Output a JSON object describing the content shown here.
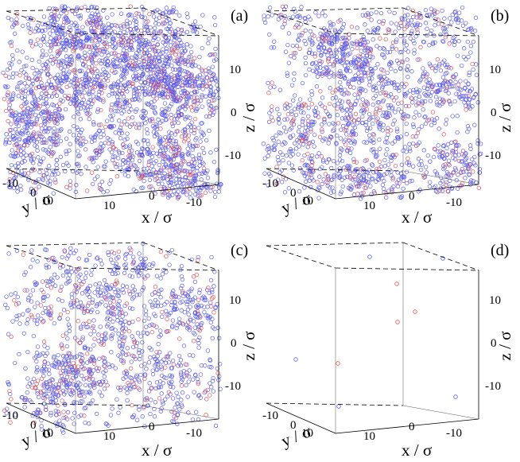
{
  "figure": {
    "panels": [
      {
        "label": "(a)",
        "density": "high",
        "ticks": {
          "z": [
            "10",
            "0",
            "-10"
          ],
          "x": [
            "10",
            "0",
            "-10"
          ],
          "y": [
            "-10",
            "0",
            "10"
          ]
        },
        "axis_labels": {
          "z": "z / σ",
          "x": "x / σ",
          "y": "y / σ"
        }
      },
      {
        "label": "(b)",
        "density": "medium-high",
        "ticks": {
          "z": [
            "10",
            "0",
            "-10"
          ],
          "x": [
            "10",
            "0",
            "-10"
          ],
          "y": [
            "-10",
            "0",
            "10"
          ]
        },
        "axis_labels": {
          "z": "z / σ",
          "x": "x / σ",
          "y": "y / σ"
        }
      },
      {
        "label": "(c)",
        "density": "medium",
        "ticks": {
          "z": [
            "10",
            "0",
            "-10"
          ],
          "x": [
            "10",
            "0",
            "-10"
          ],
          "y": [
            "-10",
            "0",
            "10"
          ]
        },
        "axis_labels": {
          "z": "z / σ",
          "x": "x / σ",
          "y": "y / σ"
        }
      },
      {
        "label": "(d)",
        "density": "sparse",
        "ticks": {
          "z": [
            "10",
            "0",
            "-10"
          ],
          "x": [
            "10",
            "0",
            "-10"
          ],
          "y": [
            "-10",
            "0",
            "10"
          ]
        },
        "axis_labels": {
          "z": "z / σ",
          "x": "x / σ",
          "y": "y / σ"
        }
      }
    ],
    "colors": {
      "blue_particle": "#5a5aee",
      "red_particle": "#e05050",
      "frame": "#000000"
    }
  }
}
